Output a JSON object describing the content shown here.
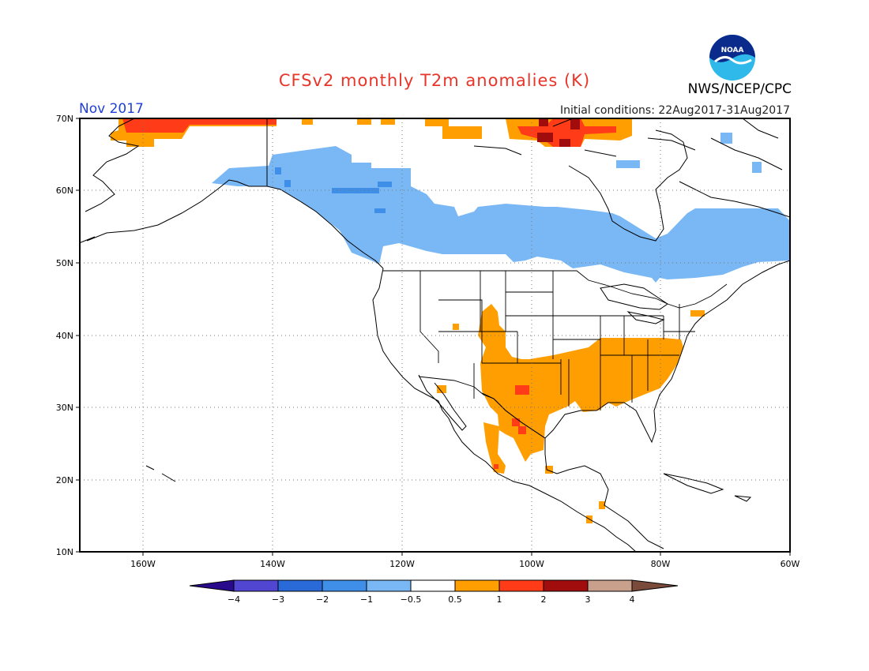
{
  "header": {
    "title": "CFSv2 monthly T2m anomalies (K)",
    "month": "Nov 2017",
    "initial_conditions": "Initial conditions: 22Aug2017-31Aug2017",
    "agency": "NWS/NCEP/CPC",
    "logo_text": "NOAA"
  },
  "map": {
    "lat_labels": [
      "70N",
      "60N",
      "50N",
      "40N",
      "30N",
      "20N",
      "10N"
    ],
    "lon_labels": [
      "160W",
      "140W",
      "120W",
      "100W",
      "80W",
      "60W"
    ]
  },
  "legend": {
    "tick_labels": [
      "−4",
      "−3",
      "−2",
      "−1",
      "−0.5",
      "0.5",
      "1",
      "2",
      "3",
      "4"
    ],
    "colors": [
      "#2a0a8c",
      "#5046d2",
      "#2a6ad8",
      "#3f8fe9",
      "#7ab8f5",
      "#ffffff",
      "#ff9e00",
      "#ff3c17",
      "#a10d0d",
      "#c9a08c",
      "#7a4a3a"
    ]
  },
  "colors": {
    "warm_05_1": "#ff9e00",
    "warm_1_2": "#ff3c17",
    "warm_2_3": "#a10d0d",
    "cool_m1_m05": "#7ab8f5",
    "cool_m2_m1": "#3f8fe9",
    "title": "#e8352a",
    "month": "#1f3fd6"
  }
}
